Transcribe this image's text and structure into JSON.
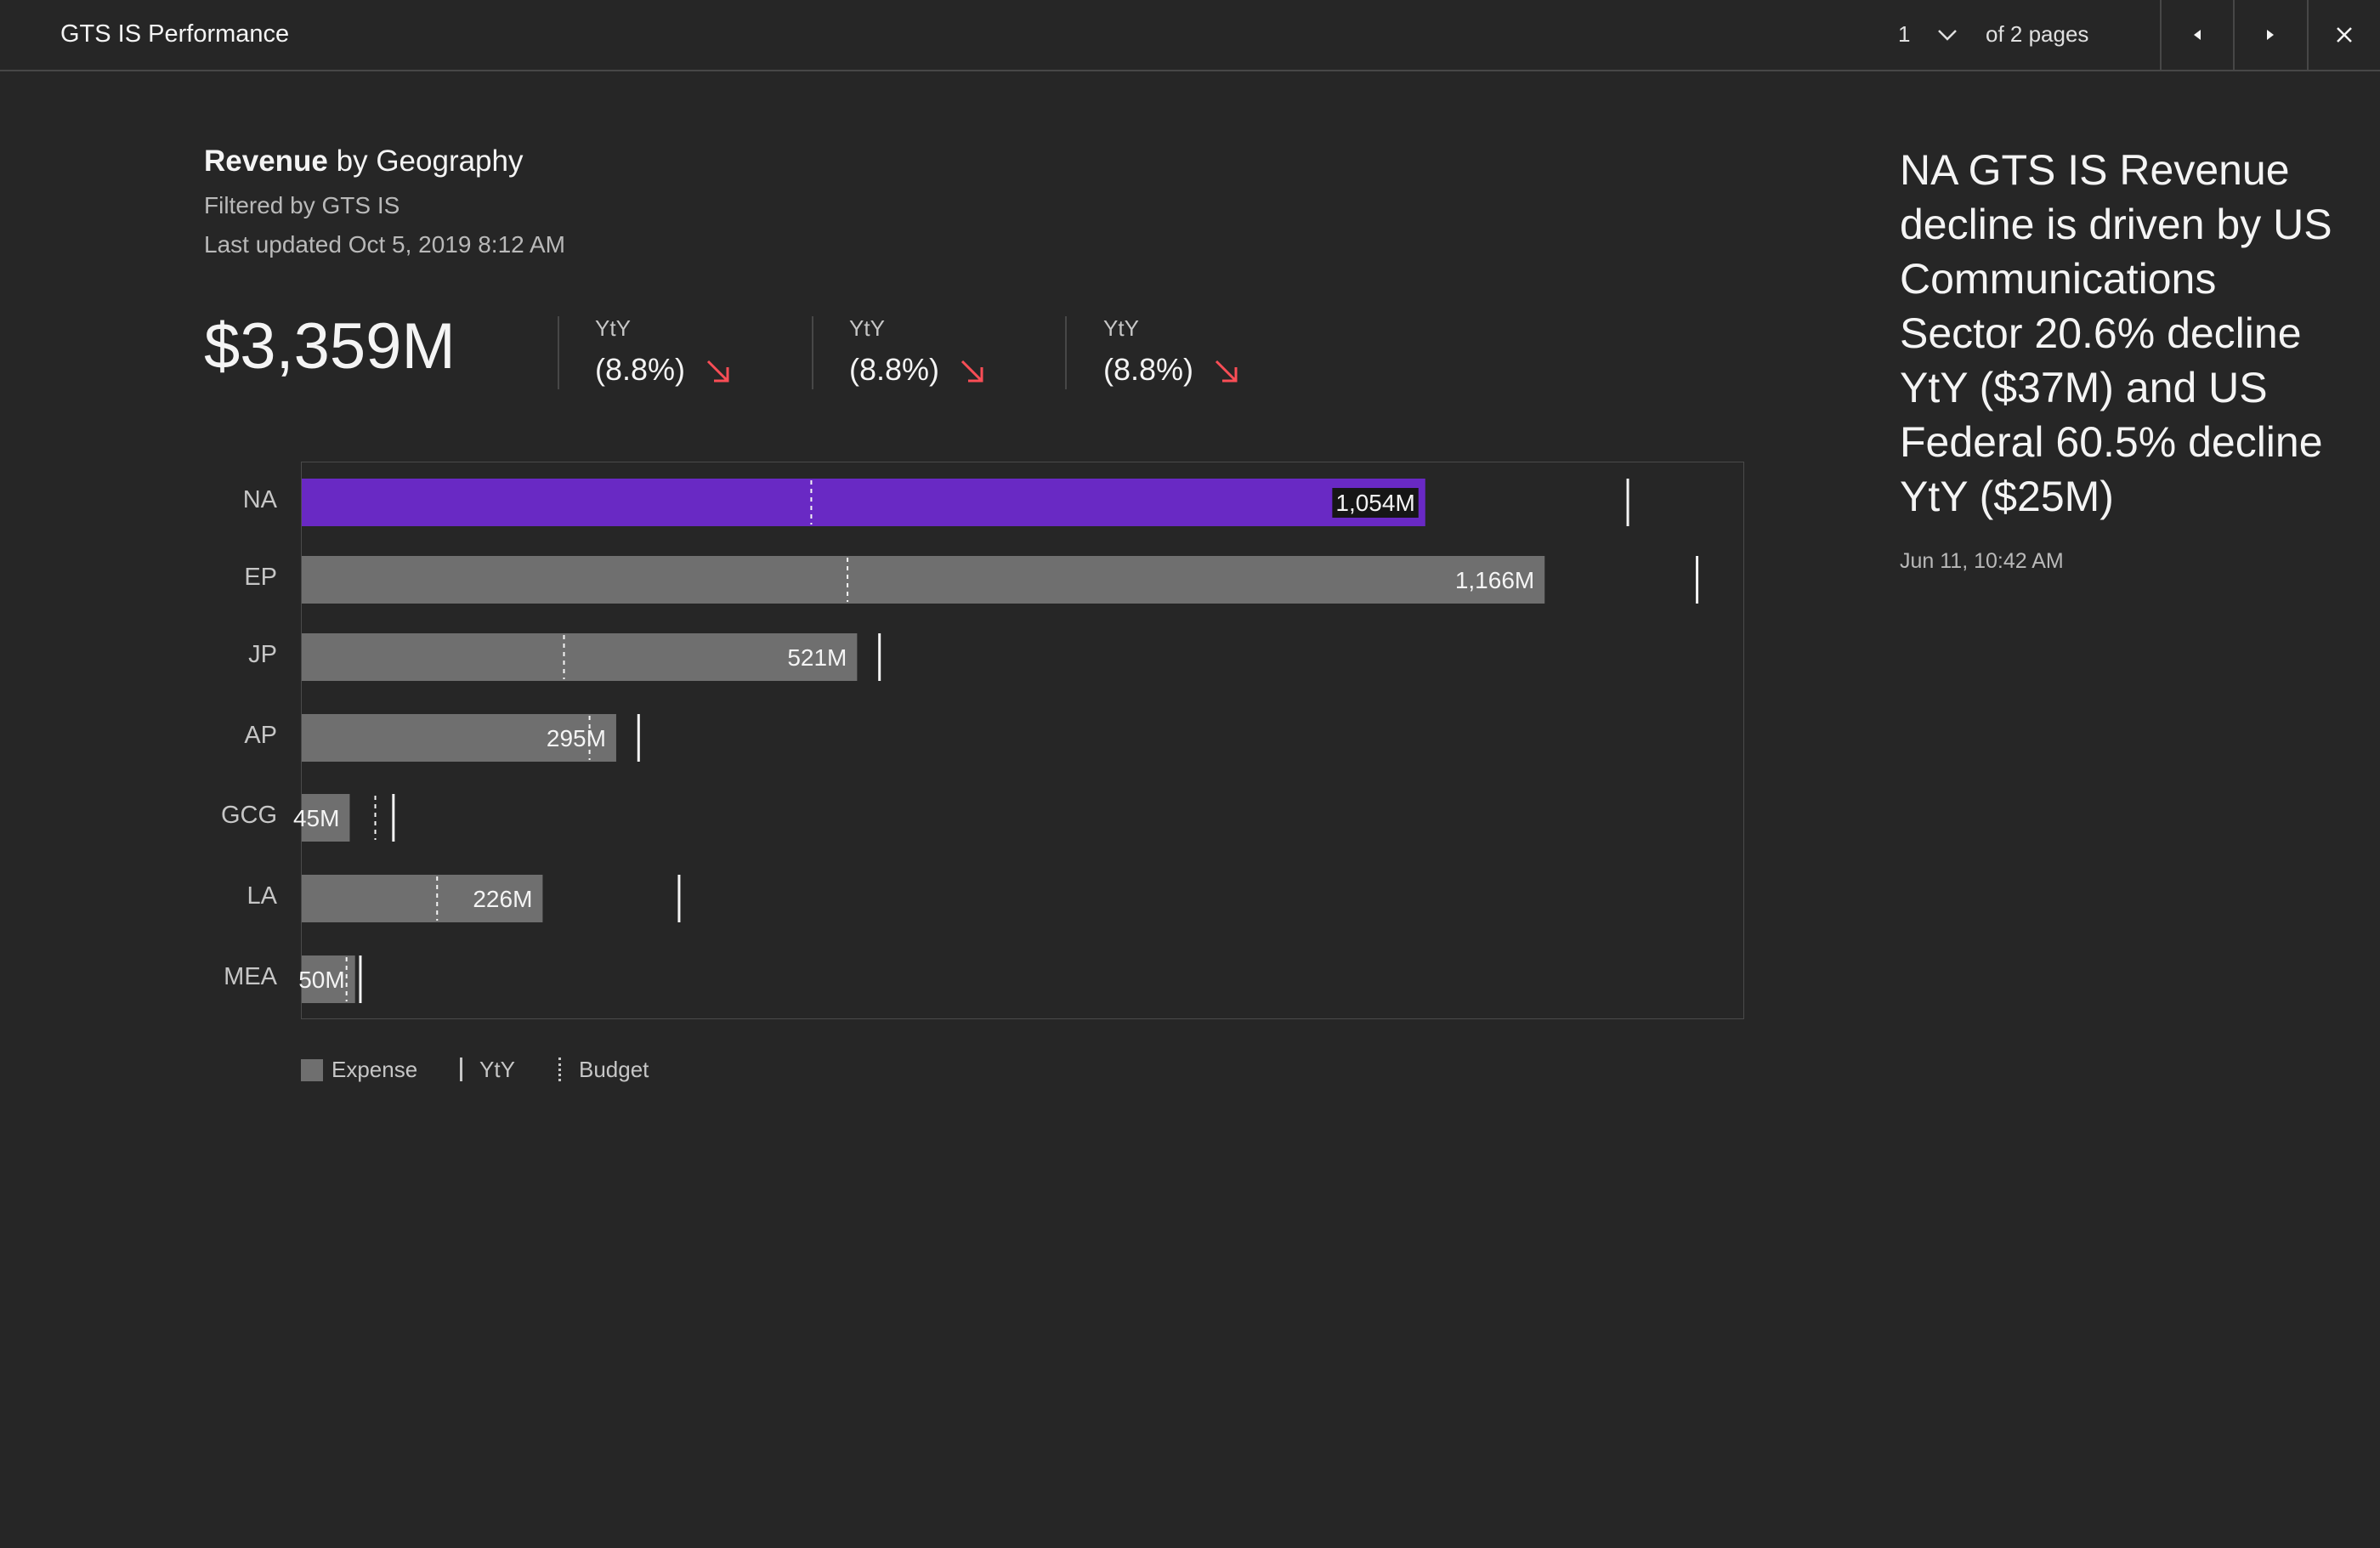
{
  "app": {
    "title": "GTS IS Performance"
  },
  "pagination": {
    "current": "1",
    "total_label": "of 2 pages"
  },
  "header": {
    "title_bold": "Revenue",
    "title_rest": " by Geography",
    "filter": "Filtered by GTS IS",
    "updated": "Last updated Oct 5, 2019 8:12 AM"
  },
  "kpis": {
    "total": "$3,359M",
    "items": [
      {
        "label": "YtY",
        "value": "(8.8%)",
        "trend": "down"
      },
      {
        "label": "YtY",
        "value": "(8.8%)",
        "trend": "down"
      },
      {
        "label": "YtY",
        "value": "(8.8%)",
        "trend": "down"
      }
    ]
  },
  "colors": {
    "background": "#262626",
    "bar": "#6f6f6f",
    "highlight": "#6929c4",
    "down_arrow": "#fa4d56",
    "marker": "#f4f4f4"
  },
  "chart_data": {
    "type": "bar",
    "orientation": "horizontal",
    "categories": [
      "NA",
      "EP",
      "JP",
      "AP",
      "GCG",
      "LA",
      "MEA"
    ],
    "series": [
      {
        "name": "Expense",
        "values": [
          1054,
          1166,
          521,
          295,
          45,
          226,
          50
        ]
      }
    ],
    "value_labels": [
      "1,054M",
      "1,166M",
      "521M",
      "295M",
      "45M",
      "226M",
      "50M"
    ],
    "yty": [
      1244,
      1309,
      542,
      316,
      86,
      354,
      55
    ],
    "budget": [
      478,
      512,
      246,
      270,
      69,
      127,
      42
    ],
    "highlighted_category": "NA",
    "xlim": [
      0,
      1354
    ],
    "legend": [
      "Expense",
      "YtY",
      "Budget"
    ],
    "legend_position": "bottom-left"
  },
  "insight": {
    "text": "NA GTS IS Revenue decline is driven by US Communications Sector 20.6% decline YtY ($37M) and US Federal 60.5% decline YtY ($25M)",
    "date": "Jun 11, 10:42 AM"
  }
}
